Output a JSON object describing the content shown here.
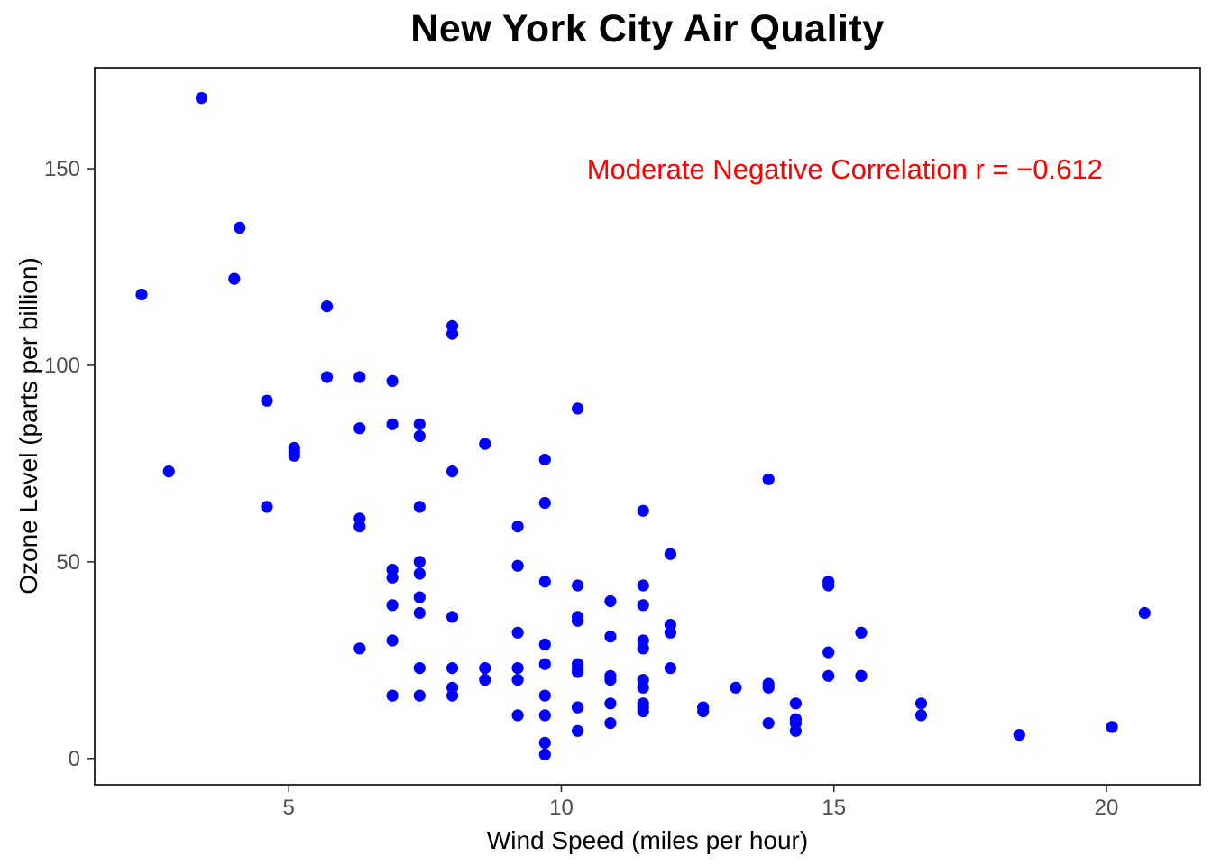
{
  "chart_data": {
    "type": "scatter",
    "title": "New York City Air Quality",
    "xlabel": "Wind Speed (miles per hour)",
    "ylabel": "Ozone Level (parts per billion)",
    "xlim": [
      1.44,
      21.72
    ],
    "ylim": [
      -6.7,
      175.7
    ],
    "x_ticks": [
      5,
      10,
      15,
      20
    ],
    "y_ticks": [
      0,
      50,
      100,
      150
    ],
    "grid": false,
    "legend": "none",
    "panel_fill": "#FFFFFF",
    "panel_border_color": "#000000",
    "tick_color": "#333333",
    "tick_label_color": "#4D4D4D",
    "point_color": "#0000FF",
    "point_radius": 6.6,
    "annotation": {
      "text": "Moderate Negative Correlation r = −0.612",
      "x": 15.2,
      "y": 150,
      "color": "#FF0000"
    },
    "points": [
      [
        7.4,
        41
      ],
      [
        8,
        36
      ],
      [
        12.6,
        12
      ],
      [
        11.5,
        18
      ],
      [
        8.6,
        23
      ],
      [
        13.8,
        19
      ],
      [
        20.1,
        8
      ],
      [
        9.7,
        16
      ],
      [
        9.2,
        11
      ],
      [
        10.9,
        14
      ],
      [
        13.2,
        18
      ],
      [
        11.5,
        14
      ],
      [
        12,
        34
      ],
      [
        18.4,
        6
      ],
      [
        11.5,
        30
      ],
      [
        9.7,
        11
      ],
      [
        9.7,
        1
      ],
      [
        16.6,
        11
      ],
      [
        9.7,
        4
      ],
      [
        12,
        32
      ],
      [
        12,
        23
      ],
      [
        14.9,
        45
      ],
      [
        5.7,
        115
      ],
      [
        7.4,
        37
      ],
      [
        9.7,
        29
      ],
      [
        13.8,
        71
      ],
      [
        11.5,
        39
      ],
      [
        8,
        23
      ],
      [
        14.9,
        21
      ],
      [
        20.7,
        37
      ],
      [
        9.2,
        20
      ],
      [
        11.5,
        12
      ],
      [
        10.3,
        13
      ],
      [
        4.1,
        135
      ],
      [
        9.2,
        49
      ],
      [
        9.2,
        32
      ],
      [
        4.6,
        64
      ],
      [
        10.9,
        40
      ],
      [
        5.1,
        77
      ],
      [
        6.3,
        97
      ],
      [
        5.7,
        97
      ],
      [
        7.4,
        85
      ],
      [
        14.3,
        10
      ],
      [
        14.9,
        27
      ],
      [
        14.3,
        7
      ],
      [
        6.9,
        48
      ],
      [
        10.3,
        35
      ],
      [
        6.3,
        61
      ],
      [
        5.1,
        79
      ],
      [
        11.5,
        63
      ],
      [
        6.9,
        16
      ],
      [
        8.6,
        80
      ],
      [
        8,
        108
      ],
      [
        8.6,
        20
      ],
      [
        12,
        52
      ],
      [
        7.4,
        82
      ],
      [
        7.4,
        50
      ],
      [
        7.4,
        64
      ],
      [
        9.2,
        59
      ],
      [
        6.9,
        39
      ],
      [
        13.8,
        9
      ],
      [
        7.4,
        16
      ],
      [
        4,
        122
      ],
      [
        10.3,
        89
      ],
      [
        8,
        110
      ],
      [
        11.5,
        44
      ],
      [
        11.5,
        28
      ],
      [
        9.7,
        65
      ],
      [
        10.3,
        22
      ],
      [
        6.3,
        59
      ],
      [
        7.4,
        23
      ],
      [
        10.9,
        31
      ],
      [
        10.3,
        44
      ],
      [
        15.5,
        21
      ],
      [
        14.3,
        9
      ],
      [
        9.7,
        45
      ],
      [
        3.4,
        168
      ],
      [
        8,
        73
      ],
      [
        9.7,
        76
      ],
      [
        2.3,
        118
      ],
      [
        6.3,
        84
      ],
      [
        6.9,
        85
      ],
      [
        6.9,
        96
      ],
      [
        5.1,
        78
      ],
      [
        2.8,
        73
      ],
      [
        4.6,
        91
      ],
      [
        7.4,
        47
      ],
      [
        15.5,
        32
      ],
      [
        10.9,
        20
      ],
      [
        10.3,
        23
      ],
      [
        10.9,
        21
      ],
      [
        9.7,
        24
      ],
      [
        14.9,
        44
      ],
      [
        15.5,
        21
      ],
      [
        6.3,
        28
      ],
      [
        10.9,
        9
      ],
      [
        11.5,
        13
      ],
      [
        6.9,
        46
      ],
      [
        13.8,
        18
      ],
      [
        10.3,
        13
      ],
      [
        10.3,
        24
      ],
      [
        8,
        16
      ],
      [
        12.6,
        13
      ],
      [
        9.2,
        23
      ],
      [
        10.3,
        36
      ],
      [
        10.3,
        7
      ],
      [
        16.6,
        14
      ],
      [
        6.9,
        30
      ],
      [
        14.3,
        14
      ],
      [
        8,
        18
      ],
      [
        11.5,
        20
      ]
    ]
  }
}
